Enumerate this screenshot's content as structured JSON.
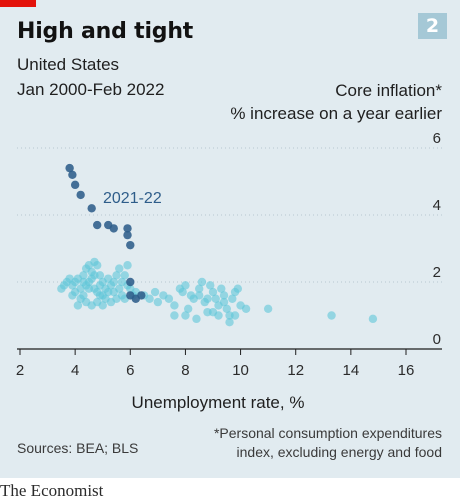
{
  "header": {
    "number": "2",
    "title": "High and tight",
    "subtitle": "United States",
    "date_range": "Jan 2000-Feb 2022"
  },
  "y_axis_title": {
    "line1": "Core inflation*",
    "line2": "% increase on a year earlier"
  },
  "footer": {
    "sources": "Sources: BEA; BLS",
    "footnote_line1": "*Personal consumption expenditures",
    "footnote_line2": "index, excluding energy and food",
    "brand": "The Economist"
  },
  "colors": {
    "panel_bg": "#e1ebf0",
    "history": "#5fc7d8",
    "recent": "#2e5d8a",
    "brand_red": "#e3120b"
  },
  "chart_data": {
    "type": "scatter",
    "title": "High and tight",
    "xlabel": "Unemployment rate, %",
    "ylabel": "Core inflation* % increase on a year earlier",
    "xlim": [
      2,
      16
    ],
    "ylim": [
      0,
      6
    ],
    "xticks": [
      2,
      4,
      6,
      8,
      10,
      12,
      14,
      16
    ],
    "yticks": [
      0,
      2,
      4,
      6
    ],
    "grid": "horizontal",
    "annotation": "2021-22",
    "series": [
      {
        "points": [
          [
            3.5,
            1.8
          ],
          [
            3.6,
            1.9
          ],
          [
            3.7,
            2.0
          ],
          [
            3.8,
            2.1
          ],
          [
            3.9,
            1.9
          ],
          [
            4.0,
            2.0
          ],
          [
            4.0,
            1.7
          ],
          [
            3.9,
            1.6
          ],
          [
            4.1,
            2.1
          ],
          [
            4.2,
            1.8
          ],
          [
            4.3,
            2.2
          ],
          [
            4.4,
            1.9
          ],
          [
            4.5,
            2.0
          ],
          [
            4.6,
            2.3
          ],
          [
            4.7,
            2.6
          ],
          [
            4.8,
            2.5
          ],
          [
            4.9,
            2.2
          ],
          [
            5.0,
            2.0
          ],
          [
            4.5,
            2.5
          ],
          [
            4.4,
            2.4
          ],
          [
            4.6,
            2.1
          ],
          [
            4.7,
            1.8
          ],
          [
            4.8,
            1.7
          ],
          [
            4.9,
            1.9
          ],
          [
            5.0,
            1.6
          ],
          [
            5.1,
            1.8
          ],
          [
            5.2,
            2.1
          ],
          [
            5.3,
            1.9
          ],
          [
            5.4,
            2.0
          ],
          [
            5.5,
            2.2
          ],
          [
            5.6,
            2.4
          ],
          [
            5.7,
            2.0
          ],
          [
            5.8,
            2.2
          ],
          [
            5.9,
            1.9
          ],
          [
            6.0,
            1.8
          ],
          [
            6.1,
            1.6
          ],
          [
            5.5,
            1.5
          ],
          [
            5.4,
            1.7
          ],
          [
            5.3,
            1.4
          ],
          [
            5.6,
            1.8
          ],
          [
            5.7,
            1.6
          ],
          [
            5.8,
            1.5
          ],
          [
            4.2,
            1.5
          ],
          [
            4.3,
            1.6
          ],
          [
            4.4,
            1.4
          ],
          [
            4.6,
            1.3
          ],
          [
            4.8,
            1.4
          ],
          [
            4.1,
            1.3
          ],
          [
            5.2,
            1.7
          ],
          [
            5.0,
            1.3
          ],
          [
            5.1,
            1.5
          ],
          [
            4.9,
            1.6
          ],
          [
            4.5,
            1.8
          ],
          [
            4.3,
            2.0
          ],
          [
            4.7,
            2.2
          ],
          [
            5.9,
            2.5
          ],
          [
            6.2,
            1.7
          ],
          [
            6.5,
            1.6
          ],
          [
            6.7,
            1.5
          ],
          [
            6.9,
            1.7
          ],
          [
            7.0,
            1.4
          ],
          [
            7.2,
            1.6
          ],
          [
            7.4,
            1.5
          ],
          [
            7.6,
            1.3
          ],
          [
            7.8,
            1.8
          ],
          [
            7.9,
            1.7
          ],
          [
            8.0,
            1.9
          ],
          [
            8.2,
            1.6
          ],
          [
            8.3,
            1.5
          ],
          [
            8.5,
            1.8
          ],
          [
            8.6,
            2.0
          ],
          [
            8.7,
            1.4
          ],
          [
            8.8,
            1.5
          ],
          [
            8.9,
            1.9
          ],
          [
            9.0,
            1.7
          ],
          [
            9.1,
            1.5
          ],
          [
            9.2,
            1.3
          ],
          [
            9.3,
            1.8
          ],
          [
            9.4,
            1.6
          ],
          [
            9.5,
            1.2
          ],
          [
            9.6,
            1.0
          ],
          [
            9.7,
            1.5
          ],
          [
            9.8,
            1.7
          ],
          [
            9.9,
            1.8
          ],
          [
            10.0,
            1.3
          ],
          [
            9.6,
            0.8
          ],
          [
            9.8,
            1.0
          ],
          [
            9.2,
            1.0
          ],
          [
            8.8,
            1.1
          ],
          [
            8.4,
            0.9
          ],
          [
            8.0,
            1.0
          ],
          [
            7.6,
            1.0
          ],
          [
            8.1,
            1.2
          ],
          [
            8.5,
            1.6
          ],
          [
            9.0,
            1.1
          ],
          [
            9.4,
            1.4
          ],
          [
            10.2,
            1.2
          ],
          [
            11.0,
            1.2
          ],
          [
            13.3,
            1.0
          ],
          [
            14.8,
            0.9
          ]
        ]
      },
      {
        "name": "2021-22",
        "points": [
          [
            6.4,
            1.6
          ],
          [
            6.2,
            1.5
          ],
          [
            6.0,
            1.6
          ],
          [
            6.0,
            2.0
          ],
          [
            6.0,
            3.1
          ],
          [
            5.9,
            3.4
          ],
          [
            5.9,
            3.6
          ],
          [
            5.4,
            3.6
          ],
          [
            5.2,
            3.7
          ],
          [
            4.8,
            3.7
          ],
          [
            4.6,
            4.2
          ],
          [
            4.2,
            4.6
          ],
          [
            4.0,
            4.9
          ],
          [
            3.9,
            5.2
          ],
          [
            3.8,
            5.4
          ]
        ]
      }
    ]
  }
}
